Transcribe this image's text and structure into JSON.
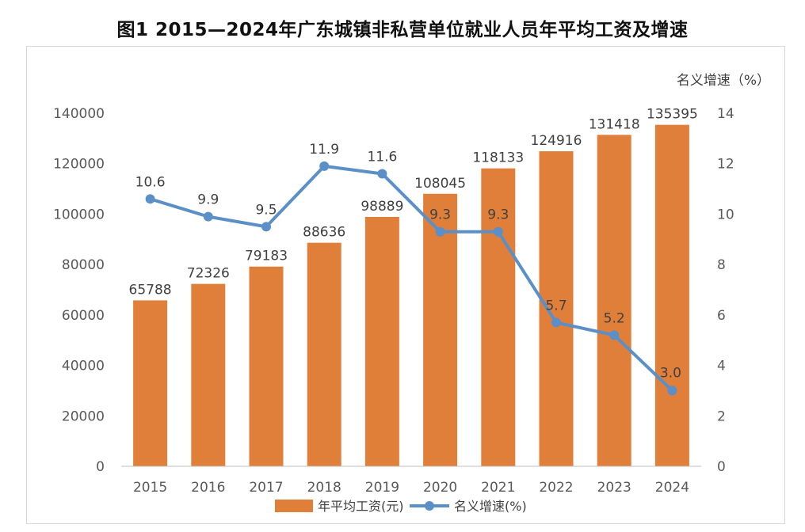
{
  "title": "图1  2015—2024年广东城镇非私营单位就业人员年平均工资及增速",
  "chart_data": {
    "type": "bar+line",
    "categories": [
      "2015",
      "2016",
      "2017",
      "2018",
      "2019",
      "2020",
      "2021",
      "2022",
      "2023",
      "2024"
    ],
    "series": [
      {
        "name": "年平均工资(元)",
        "type": "bar",
        "axis": "left",
        "values": [
          65788,
          72326,
          79183,
          88636,
          98889,
          108045,
          118133,
          124916,
          131418,
          135395
        ],
        "color": "#E07F3A"
      },
      {
        "name": "名义增速(%)",
        "type": "line",
        "axis": "right",
        "values": [
          10.6,
          9.9,
          9.5,
          11.9,
          11.6,
          9.3,
          9.3,
          5.7,
          5.2,
          3.0
        ],
        "color": "#5B8FC8"
      }
    ],
    "y_left": {
      "min": 0,
      "max": 140000,
      "ticks": [
        0,
        20000,
        40000,
        60000,
        80000,
        100000,
        120000,
        140000
      ]
    },
    "y_right": {
      "min": 0,
      "max": 14,
      "ticks": [
        0,
        2,
        4,
        6,
        8,
        10,
        12,
        14
      ],
      "label": "名义增速（%）"
    },
    "legend": "bottom-center",
    "grid": false
  }
}
